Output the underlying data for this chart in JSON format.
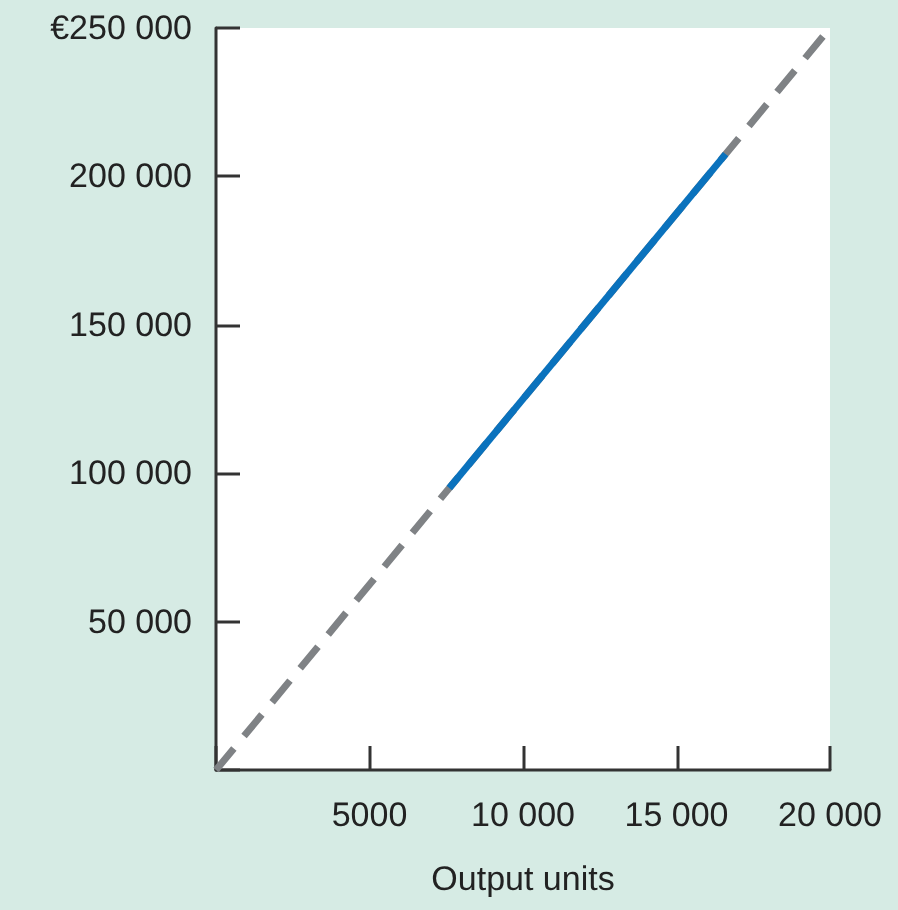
{
  "chart_data": {
    "type": "line",
    "xlabel": "Output units",
    "series": [
      {
        "color": "#7f8285",
        "line_style": "dashed",
        "x": [
          0,
          20000
        ],
        "values": [
          0,
          250000
        ]
      },
      {
        "color": "#0a72bd",
        "line_style": "solid",
        "x": [
          7600,
          16600
        ],
        "values": [
          95000,
          207500
        ]
      }
    ],
    "xlim": [
      0,
      20000
    ],
    "xticks": [
      {
        "value": 0,
        "label": null
      },
      5000,
      {
        "value": 10000,
        "label": "10 000"
      },
      {
        "value": 15000,
        "label": "15 000"
      },
      {
        "value": 20000,
        "label": "20 000"
      }
    ],
    "ylim": [
      0,
      250000
    ],
    "yticks": [
      {
        "value": 0,
        "label": null
      },
      {
        "value": 50000,
        "label": "50 000"
      },
      {
        "value": 100000,
        "label": "100 000"
      },
      {
        "value": 150000,
        "label": "150 000"
      },
      {
        "value": 200000,
        "label": "200 000"
      },
      {
        "value": 250000,
        "label": "€250 000"
      }
    ],
    "grid": false,
    "marker": "none"
  }
}
